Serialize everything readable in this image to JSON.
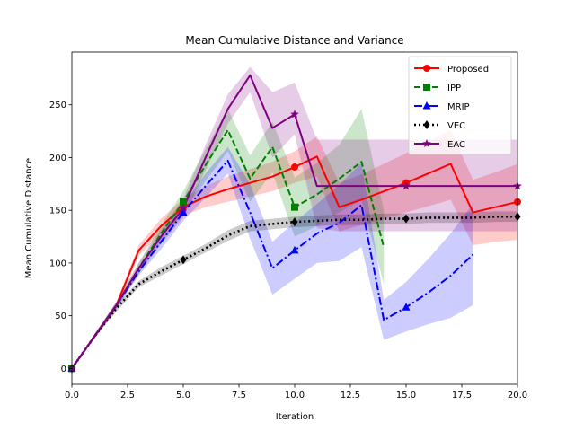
{
  "chart_data": {
    "type": "line",
    "title": "Mean Cumulative Distance and Variance",
    "xlabel": "Iteration",
    "ylabel": "Mean Cumulative Distance",
    "xlim": [
      0,
      20
    ],
    "ylim": [
      -15,
      300
    ],
    "xticks": [
      0.0,
      2.5,
      5.0,
      7.5,
      10.0,
      12.5,
      15.0,
      17.5,
      20.0
    ],
    "xtick_labels": [
      "0.0",
      "2.5",
      "5.0",
      "7.5",
      "10.0",
      "12.5",
      "15.0",
      "17.5",
      "20.0"
    ],
    "yticks": [
      0,
      50,
      100,
      150,
      200,
      250
    ],
    "ytick_labels": [
      "0",
      "50",
      "100",
      "150",
      "200",
      "250"
    ],
    "grid": false,
    "legend_position": "top-right",
    "series": [
      {
        "name": "Proposed",
        "color": "#ff0000",
        "dash": "solid",
        "marker": "circle",
        "x": [
          0,
          1,
          2,
          3,
          4,
          5,
          6,
          7,
          8,
          9,
          10,
          11,
          12,
          13,
          14,
          15,
          16,
          17,
          18,
          19,
          20
        ],
        "y": [
          0,
          30,
          60,
          112,
          135,
          153,
          163,
          170,
          176,
          182,
          191,
          201,
          153,
          160,
          168,
          176,
          185,
          194,
          148,
          153,
          158
        ],
        "lower": [
          0,
          28,
          57,
          107,
          128,
          145,
          153,
          158,
          163,
          168,
          176,
          182,
          130,
          136,
          142,
          148,
          154,
          160,
          117,
          120,
          122
        ],
        "upper": [
          0,
          32,
          63,
          117,
          142,
          161,
          173,
          182,
          189,
          196,
          206,
          220,
          176,
          184,
          194,
          204,
          215,
          226,
          179,
          186,
          194
        ],
        "marker_indices": [
          0,
          5,
          10,
          15,
          20
        ]
      },
      {
        "name": "IPP",
        "color": "#008000",
        "dash": "dashed",
        "marker": "square",
        "x": [
          0,
          1,
          2,
          3,
          4,
          5,
          6,
          7,
          8,
          9,
          10,
          11,
          12,
          13,
          14
        ],
        "y": [
          0,
          30,
          60,
          95,
          128,
          158,
          193,
          226,
          180,
          210,
          153,
          165,
          180,
          196,
          115
        ],
        "lower": [
          0,
          28,
          57,
          90,
          120,
          148,
          178,
          206,
          158,
          186,
          125,
          135,
          148,
          160,
          80
        ],
        "upper": [
          0,
          32,
          63,
          100,
          136,
          168,
          208,
          246,
          202,
          234,
          181,
          195,
          212,
          246,
          150
        ],
        "marker_indices": [
          0,
          5,
          10
        ]
      },
      {
        "name": "MRIP",
        "color": "#0000ff",
        "dash": "dashdot",
        "marker": "triangle",
        "x": [
          0,
          1,
          2,
          3,
          4,
          5,
          6,
          7,
          8,
          9,
          10,
          11,
          12,
          13,
          14,
          15,
          16,
          17,
          18
        ],
        "y": [
          0,
          30,
          60,
          92,
          120,
          148,
          173,
          197,
          148,
          95,
          112,
          128,
          138,
          155,
          46,
          58,
          72,
          88,
          108
        ],
        "lower": [
          0,
          28,
          57,
          88,
          113,
          140,
          162,
          185,
          123,
          70,
          85,
          100,
          102,
          115,
          27,
          35,
          42,
          48,
          60
        ],
        "upper": [
          0,
          32,
          63,
          96,
          127,
          156,
          185,
          210,
          175,
          120,
          139,
          156,
          174,
          195,
          65,
          82,
          104,
          128,
          156
        ],
        "marker_indices": [
          0,
          5,
          10,
          15
        ]
      },
      {
        "name": "VEC",
        "color": "#000000",
        "dash": "dotted",
        "marker": "diamond",
        "x": [
          0,
          1,
          2,
          3,
          4,
          5,
          6,
          7,
          8,
          9,
          10,
          11,
          12,
          13,
          14,
          15,
          16,
          17,
          18,
          19,
          20
        ],
        "y": [
          0,
          30,
          57,
          80,
          92,
          103,
          114,
          126,
          135,
          137,
          139,
          140,
          141,
          141,
          142,
          142,
          143,
          143,
          143,
          144,
          144
        ],
        "lower": [
          0,
          29,
          54,
          77,
          88,
          99,
          110,
          121,
          130,
          132,
          134,
          135,
          136,
          136,
          137,
          137,
          138,
          138,
          138,
          139,
          139
        ],
        "upper": [
          0,
          31,
          60,
          83,
          96,
          107,
          118,
          131,
          140,
          142,
          144,
          145,
          146,
          146,
          147,
          147,
          148,
          148,
          148,
          149,
          149
        ],
        "marker_indices": [
          0,
          5,
          10,
          15,
          20
        ]
      },
      {
        "name": "EAC",
        "color": "#800080",
        "dash": "solid",
        "marker": "star",
        "x": [
          0,
          1,
          2,
          3,
          4,
          5,
          6,
          7,
          8,
          9,
          10,
          11,
          12,
          13,
          14,
          15,
          16,
          17,
          18,
          19,
          20
        ],
        "y": [
          0,
          30,
          60,
          95,
          125,
          152,
          200,
          246,
          278,
          228,
          241,
          173,
          173,
          173,
          173,
          173,
          173,
          173,
          173,
          173,
          173
        ],
        "lower": [
          0,
          28,
          57,
          90,
          118,
          143,
          188,
          232,
          262,
          200,
          222,
          133,
          130,
          130,
          130,
          130,
          130,
          130,
          130,
          130,
          130
        ],
        "upper": [
          0,
          32,
          63,
          100,
          132,
          161,
          212,
          260,
          286,
          262,
          271,
          217,
          217,
          217,
          217,
          217,
          217,
          217,
          217,
          217,
          217
        ],
        "marker_indices": [
          0,
          5,
          10,
          15,
          20
        ]
      }
    ]
  }
}
